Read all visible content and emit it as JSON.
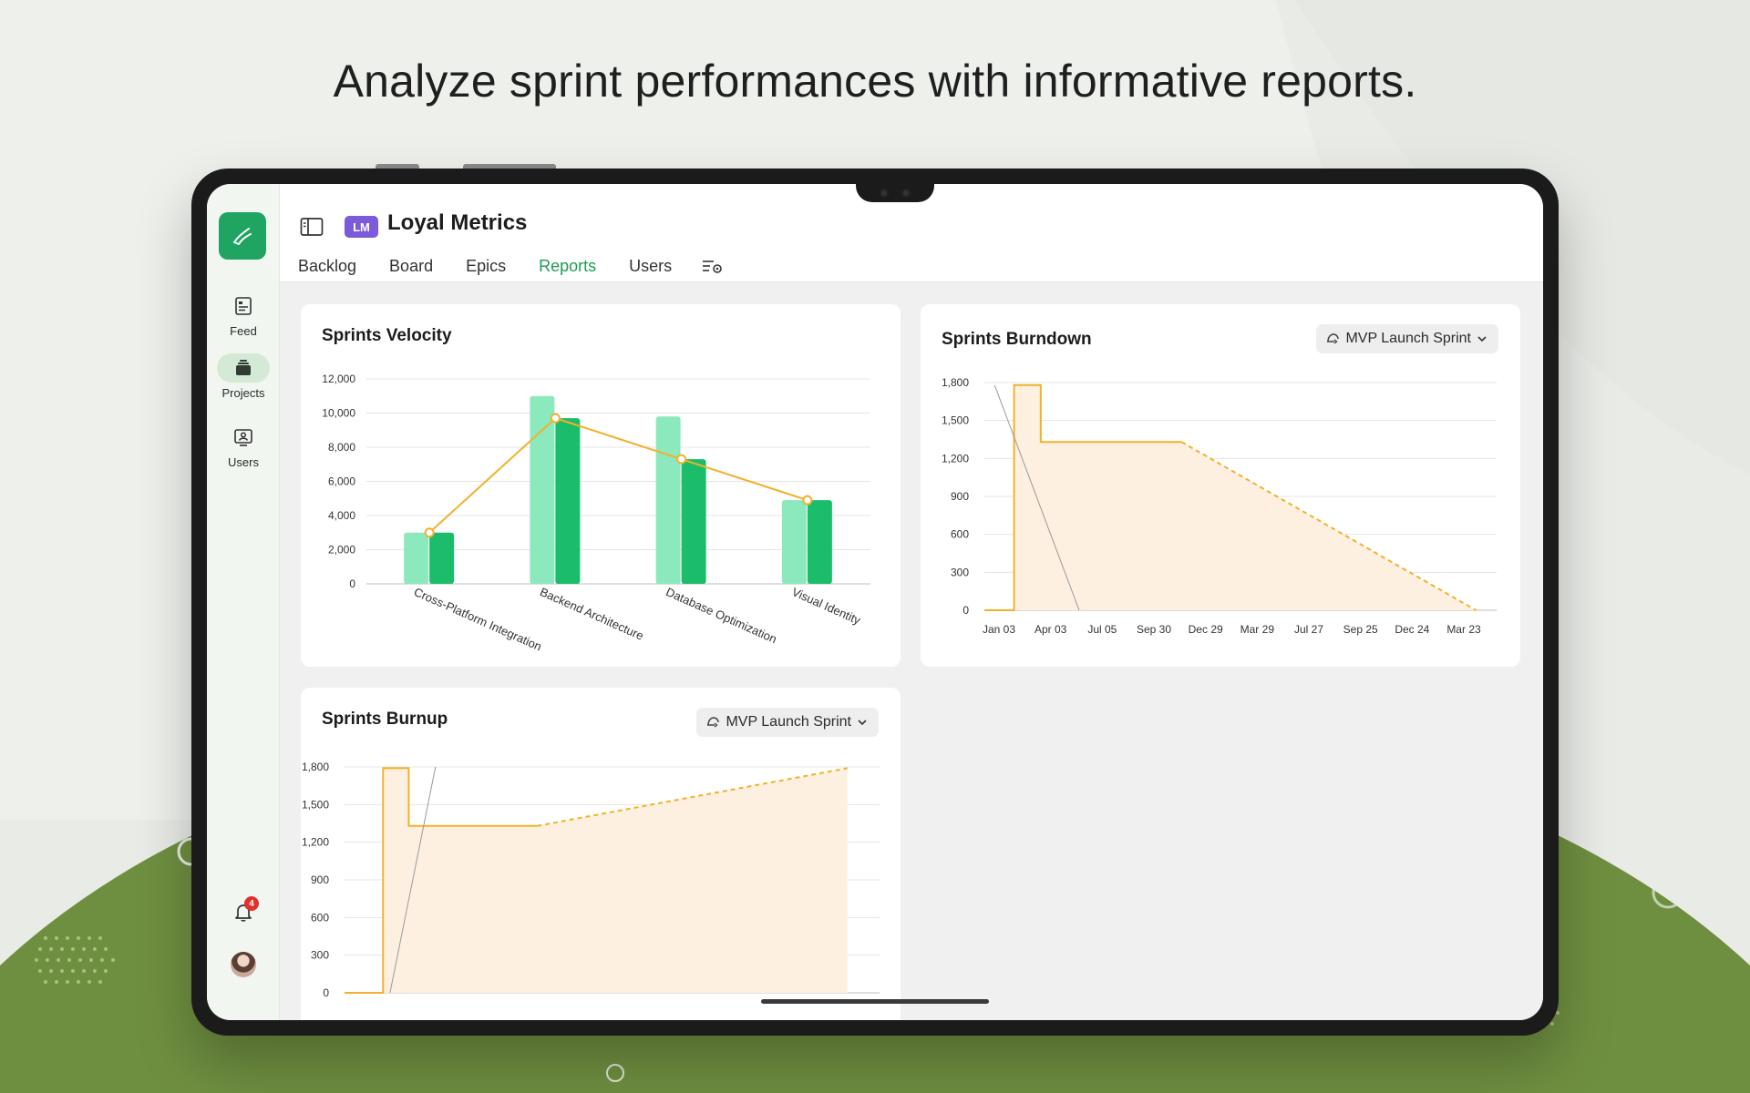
{
  "headline": "Analyze sprint performances with informative reports.",
  "colors": {
    "brand_green": "#1fa462",
    "tab_active": "#1f9a55",
    "project_badge": "#7d5ad9",
    "bar_light": "#8ce9bd",
    "bar_dark": "#1bbd6b",
    "line_orange": "#f2b12c",
    "area_fill": "#fdf0e0",
    "notification_badge": "#e0322b"
  },
  "rail": {
    "logo_icon": "brush-icon",
    "items": [
      {
        "label": "Feed",
        "icon": "feed-icon"
      },
      {
        "label": "Projects",
        "icon": "projects-icon"
      },
      {
        "label": "Users",
        "icon": "users-icon"
      }
    ],
    "notification_count": "4"
  },
  "header": {
    "project_badge": "LM",
    "project_title": "Loyal Metrics",
    "tabs": [
      {
        "label": "Backlog"
      },
      {
        "label": "Board"
      },
      {
        "label": "Epics"
      },
      {
        "label": "Reports"
      },
      {
        "label": "Users"
      }
    ]
  },
  "velocity": {
    "title": "Sprints Velocity"
  },
  "burndown": {
    "title": "Sprints Burndown",
    "sprint_select": "MVP Launch Sprint"
  },
  "burnup": {
    "title": "Sprints Burnup",
    "sprint_select": "MVP Launch Sprint"
  },
  "chart_data": [
    {
      "type": "bar",
      "title": "Sprints Velocity",
      "categories": [
        "Cross-Platform Integration",
        "Backend Architecture",
        "Database Optimization",
        "Visual Identity"
      ],
      "series": [
        {
          "values": [
            3000,
            11000,
            9800,
            4900
          ],
          "color": "#8ce9bd"
        },
        {
          "values": [
            3000,
            9700,
            7300,
            4900
          ],
          "color": "#1bbd6b"
        }
      ],
      "line": {
        "values": [
          3000,
          9700,
          7300,
          4900
        ],
        "color": "#f2b12c"
      },
      "yticks": [
        "0",
        "2,000",
        "4,000",
        "6,000",
        "8,000",
        "10,000",
        "12,000"
      ],
      "ylim": [
        0,
        12000
      ],
      "grid": true
    },
    {
      "type": "area",
      "title": "Sprints Burndown",
      "xticks": [
        "Jan 03",
        "Apr 03",
        "Jul 05",
        "Sep 30",
        "Dec 29",
        "Mar 29",
        "Jul 27",
        "Sep 25",
        "Dec 24",
        "Mar 23"
      ],
      "yticks": [
        "0",
        "300",
        "600",
        "900",
        "1,200",
        "1,500",
        "1,800"
      ],
      "ylim": [
        0,
        1800
      ],
      "grid": true
    },
    {
      "type": "area",
      "title": "Sprints Burnup",
      "yticks": [
        "0",
        "300",
        "600",
        "900",
        "1,200",
        "1,500",
        "1,800"
      ],
      "ylim": [
        0,
        1800
      ],
      "grid": true
    }
  ]
}
